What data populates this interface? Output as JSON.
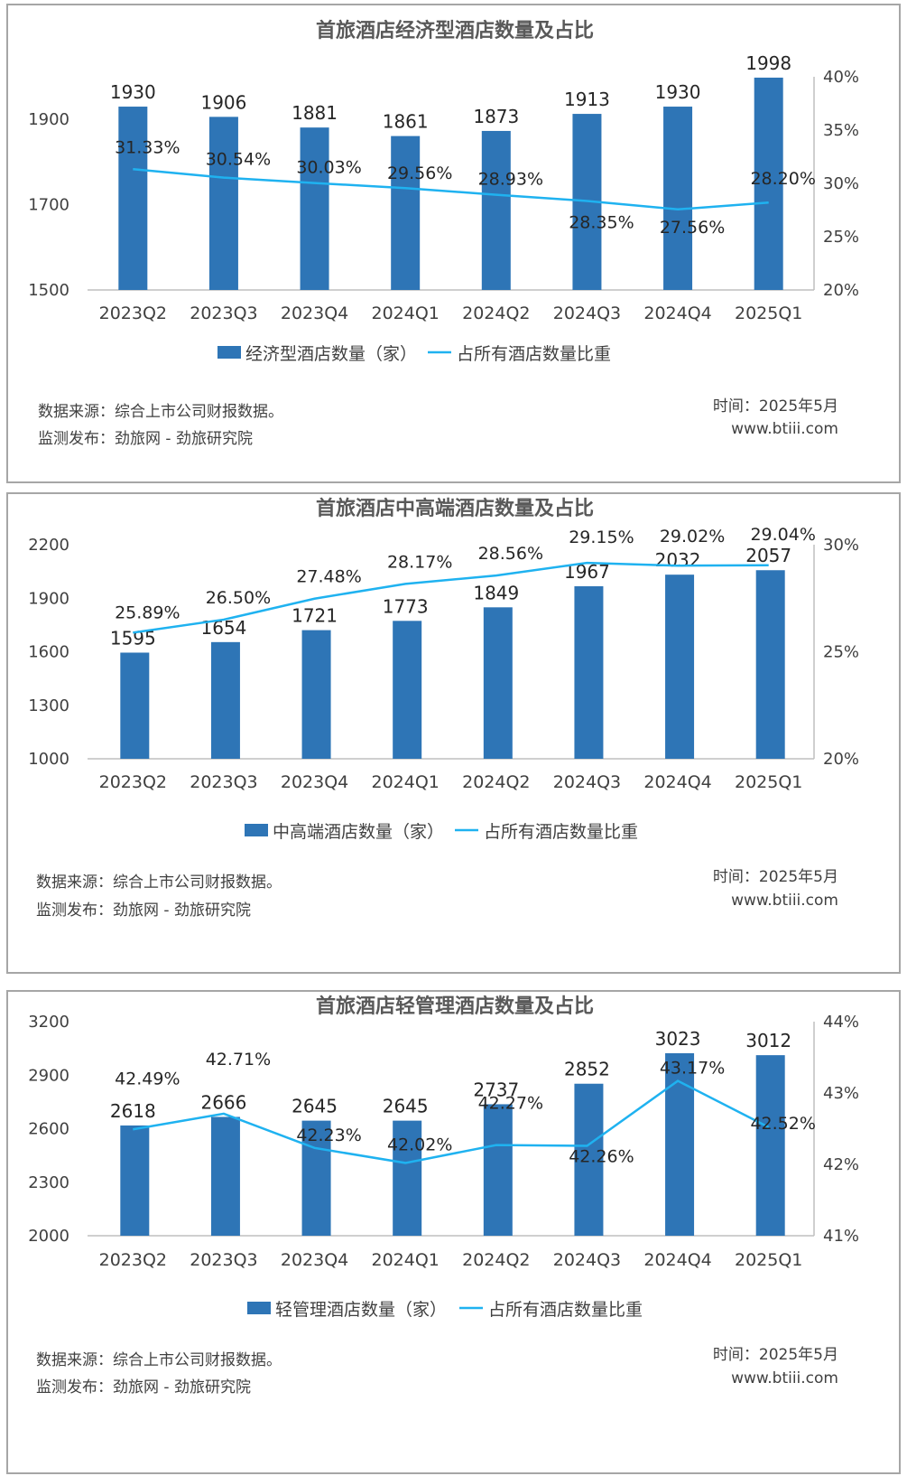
{
  "charts": [
    {
      "title": "首旅酒店经济型酒店数量及占比",
      "chart_data": {
        "type": "bar",
        "categories": [
          "2023Q2",
          "2023Q3",
          "2023Q4",
          "2024Q1",
          "2024Q2",
          "2024Q3",
          "2024Q4",
          "2025Q1"
        ],
        "series": [
          {
            "name": "经济型酒店数量（家）",
            "type": "bar",
            "axis": "left",
            "values": [
              1930,
              1906,
              1881,
              1861,
              1873,
              1913,
              1930,
              1998
            ],
            "labels": [
              "1930",
              "1906",
              "1881",
              "1861",
              "1873",
              "1913",
              "1930",
              "1998"
            ]
          },
          {
            "name": "占所有酒店数量比重",
            "type": "line",
            "axis": "right",
            "values": [
              31.33,
              30.54,
              30.03,
              29.56,
              28.93,
              28.35,
              27.56,
              28.2
            ],
            "labels": [
              "31.33%",
              "30.54%",
              "30.03%",
              "29.56%",
              "28.93%",
              "28.35%",
              "27.56%",
              "28.20%"
            ]
          }
        ],
        "y_left": {
          "min": 1500,
          "max": 2000,
          "ticks": [
            1500,
            1700,
            1900
          ]
        },
        "y_right": {
          "min": 20,
          "max": 40,
          "ticks": [
            "20%",
            "25%",
            "30%",
            "35%",
            "40%"
          ]
        },
        "grid": false,
        "legend": "bottom"
      },
      "source": "数据来源：综合上市公司财报数据。",
      "publisher": "监测发布：劲旅网 - 劲旅研究院",
      "date": "时间：2025年5月",
      "site": "www.btiii.com"
    },
    {
      "title": "首旅酒店中高端酒店数量及占比",
      "chart_data": {
        "type": "bar",
        "categories": [
          "2023Q2",
          "2023Q3",
          "2023Q4",
          "2024Q1",
          "2024Q2",
          "2024Q3",
          "2024Q4",
          "2025Q1"
        ],
        "series": [
          {
            "name": "中高端酒店数量（家）",
            "type": "bar",
            "axis": "left",
            "values": [
              1595,
              1654,
              1721,
              1773,
              1849,
              1967,
              2032,
              2057
            ],
            "labels": [
              "1595",
              "1654",
              "1721",
              "1773",
              "1849",
              "1967",
              "2032",
              "2057"
            ]
          },
          {
            "name": "占所有酒店数量比重",
            "type": "line",
            "axis": "right",
            "values": [
              25.89,
              26.5,
              27.48,
              28.17,
              28.56,
              29.15,
              29.02,
              29.04
            ],
            "labels": [
              "25.89%",
              "26.50%",
              "27.48%",
              "28.17%",
              "28.56%",
              "29.15%",
              "29.02%",
              "29.04%"
            ]
          }
        ],
        "y_left": {
          "min": 1000,
          "max": 2200,
          "ticks": [
            1000,
            1300,
            1600,
            1900,
            2200
          ]
        },
        "y_right": {
          "min": 20,
          "max": 30,
          "ticks": [
            "20%",
            "25%",
            "30%"
          ]
        },
        "grid": false,
        "legend": "bottom"
      },
      "source": "数据来源：综合上市公司财报数据。",
      "publisher": "监测发布：劲旅网 - 劲旅研究院",
      "date": "时间：2025年5月",
      "site": "www.btiii.com"
    },
    {
      "title": "首旅酒店轻管理酒店数量及占比",
      "chart_data": {
        "type": "bar",
        "categories": [
          "2023Q2",
          "2023Q3",
          "2023Q4",
          "2024Q1",
          "2024Q2",
          "2024Q3",
          "2024Q4",
          "2025Q1"
        ],
        "series": [
          {
            "name": "轻管理酒店数量（家）",
            "type": "bar",
            "axis": "left",
            "values": [
              2618,
              2666,
              2645,
              2645,
              2737,
              2852,
              3023,
              3012
            ],
            "labels": [
              "2618",
              "2666",
              "2645",
              "2645",
              "2737",
              "2852",
              "3023",
              "3012"
            ]
          },
          {
            "name": "占所有酒店数量比重",
            "type": "line",
            "axis": "right",
            "values": [
              42.49,
              42.71,
              42.23,
              42.02,
              42.27,
              42.26,
              43.17,
              42.52
            ],
            "labels": [
              "42.49%",
              "42.71%",
              "42.23%",
              "42.02%",
              "42.27%",
              "42.26%",
              "43.17%",
              "42.52%"
            ]
          }
        ],
        "y_left": {
          "min": 2000,
          "max": 3200,
          "ticks": [
            2000,
            2300,
            2600,
            2900,
            3200
          ]
        },
        "y_right": {
          "min": 41,
          "max": 44,
          "ticks": [
            "41%",
            "42%",
            "43%",
            "44%"
          ]
        },
        "grid": false,
        "legend": "bottom"
      },
      "source": "数据来源：综合上市公司财报数据。",
      "publisher": "监测发布：劲旅网 - 劲旅研究院",
      "date": "时间：2025年5月",
      "site": "www.btiii.com"
    }
  ],
  "colors": {
    "bar": "#2e75b6",
    "line": "#1fb2f0",
    "axis": "#bfbfbf",
    "border": "#a6a6a6"
  }
}
